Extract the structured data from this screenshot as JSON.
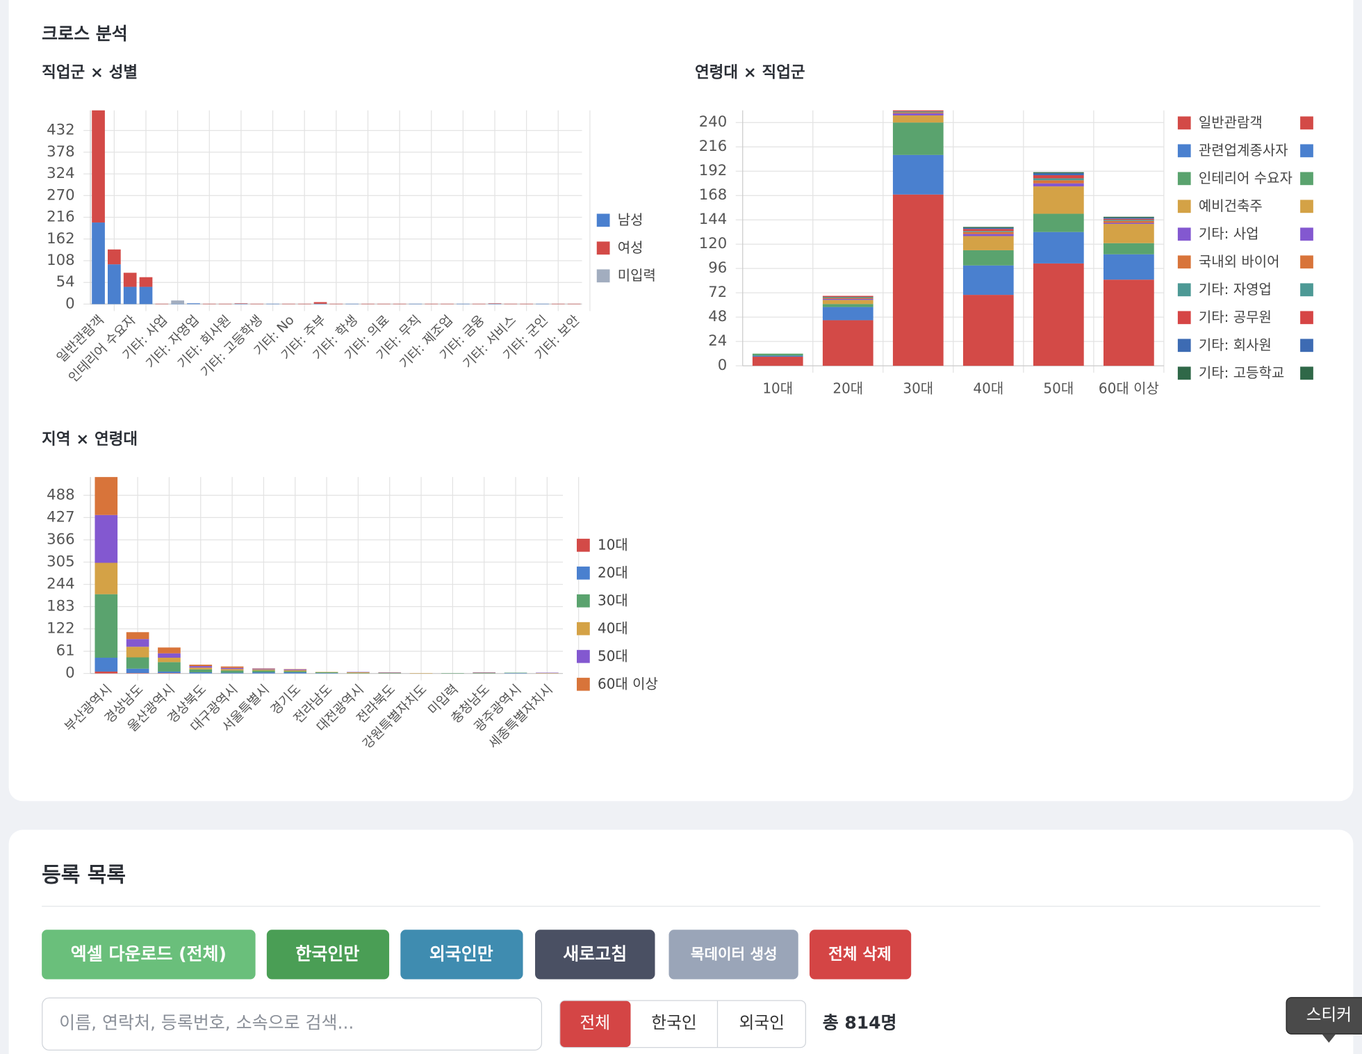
{
  "page": {
    "section_title": "크로스 분석",
    "list": {
      "title": "등록 목록",
      "buttons": [
        "엑셀 다운로드 (전체)",
        "한국인만",
        "외국인만",
        "새로고침",
        "목데이터 생성",
        "전체 삭제"
      ],
      "search_placeholder": "이름, 연락처, 등록번호, 소속으로 검색...",
      "filters": [
        "전체",
        "한국인",
        "외국인"
      ],
      "total": "총 814명",
      "tooltip": "스티커"
    }
  },
  "chart_data": [
    {
      "type": "bar",
      "stacked": true,
      "title": "직업군 × 성별",
      "legend": "right",
      "grid": true,
      "categories": [
        "일반관람객",
        null,
        "인테리어 수요자",
        null,
        "기타: 사업",
        null,
        "기타: 자영업",
        null,
        "기타: 회사원",
        null,
        "기타: 고등학생",
        null,
        "기타: No",
        null,
        "기타: 주부",
        null,
        "기타: 학생",
        null,
        "기타: 의료",
        null,
        "기타: 무직",
        null,
        "기타: 제조업",
        null,
        "기타: 금융",
        null,
        "기타: 서비스",
        null,
        "기타: 군인",
        null,
        "기타: 보안"
      ],
      "series": [
        {
          "name": "남성",
          "color": "#4a80cf",
          "values": [
            203,
            99,
            43,
            43,
            0,
            1,
            2,
            0,
            0,
            1,
            0,
            1,
            0,
            0,
            1,
            0,
            1,
            0,
            0,
            0,
            1,
            0,
            0,
            1,
            0,
            1,
            0,
            0,
            1,
            0,
            0
          ]
        },
        {
          "name": "여성",
          "color": "#d34a47",
          "values": [
            279,
            37,
            35,
            24,
            1,
            0,
            0,
            1,
            1,
            1,
            1,
            0,
            1,
            1,
            4,
            1,
            0,
            1,
            1,
            1,
            0,
            1,
            1,
            0,
            1,
            1,
            1,
            1,
            0,
            1,
            1
          ]
        },
        {
          "name": "미입력",
          "color": "#a2adbf",
          "values": [
            0,
            0,
            0,
            0,
            0,
            8,
            0,
            0,
            0,
            0,
            0,
            0,
            0,
            0,
            0,
            0,
            0,
            0,
            0,
            0,
            0,
            0,
            0,
            0,
            0,
            0,
            0,
            0,
            0,
            0,
            0
          ]
        }
      ],
      "ylim": [
        0,
        482
      ],
      "yticks": [
        0,
        54,
        108,
        162,
        216,
        270,
        324,
        378,
        432
      ]
    },
    {
      "type": "bar",
      "stacked": true,
      "title": "연령대 × 직업군",
      "legend": "right",
      "grid": true,
      "categories": [
        "10대",
        "20대",
        "30대",
        "40대",
        "50대",
        "60대 이상"
      ],
      "series": [
        {
          "name": "일반관람객",
          "color": "#d34a47",
          "values": [
            9,
            45,
            169,
            70,
            101,
            85
          ]
        },
        {
          "name": "관련업계종사자",
          "color": "#4a80cf",
          "values": [
            1,
            13,
            39,
            29,
            31,
            25
          ]
        },
        {
          "name": "인테리어 수요자",
          "color": "#5aa36e",
          "values": [
            2,
            3,
            32,
            15,
            18,
            11
          ]
        },
        {
          "name": "예비건축주",
          "color": "#d4a246",
          "values": [
            0,
            4,
            7,
            14,
            27,
            19
          ]
        },
        {
          "name": "기타: 사업",
          "color": "#8358d0",
          "values": [
            0,
            1,
            2,
            2,
            3,
            1
          ]
        },
        {
          "name": "국내외 바이어",
          "color": "#d8743a",
          "values": [
            0,
            1,
            1,
            2,
            3,
            2
          ]
        },
        {
          "name": "기타: 자영업",
          "color": "#4d9995",
          "values": [
            0,
            1,
            1,
            1,
            2,
            1
          ]
        },
        {
          "name": "기타: 공무원",
          "color": "#d64545",
          "values": [
            0,
            1,
            1,
            2,
            3,
            1
          ]
        },
        {
          "name": "기타: 회사원",
          "color": "#3d6bb3",
          "values": [
            0,
            0,
            0,
            1,
            2,
            1
          ]
        },
        {
          "name": "기타: 고등학교",
          "color": "#2f6848",
          "values": [
            0,
            0,
            0,
            1,
            1,
            1
          ]
        }
      ],
      "ylim": [
        0,
        252
      ],
      "yticks": [
        0,
        24,
        48,
        72,
        96,
        120,
        144,
        168,
        192,
        216,
        240
      ]
    },
    {
      "type": "bar",
      "stacked": true,
      "title": "지역 × 연령대",
      "legend": "right",
      "grid": true,
      "categories": [
        "부산광역시",
        "경상남도",
        "울산광역시",
        "경상북도",
        "대구광역시",
        "서울특별시",
        "경기도",
        "전라남도",
        "대전광역시",
        "전라북도",
        "강원특별자치도",
        "미입력",
        "충청남도",
        "광주광역시",
        "세종특별자치시"
      ],
      "series": [
        {
          "name": "10대",
          "color": "#d34a47",
          "values": [
            5,
            1,
            1,
            0,
            0,
            0,
            0,
            0,
            0,
            0,
            0,
            0,
            0,
            0,
            0
          ]
        },
        {
          "name": "20대",
          "color": "#4a80cf",
          "values": [
            38,
            12,
            4,
            3,
            2,
            3,
            3,
            1,
            0,
            0,
            0,
            0,
            0,
            1,
            0
          ]
        },
        {
          "name": "30대",
          "color": "#5aa36e",
          "values": [
            174,
            31,
            26,
            8,
            6,
            5,
            3,
            2,
            1,
            1,
            0,
            1,
            1,
            1,
            0
          ]
        },
        {
          "name": "40대",
          "color": "#d4a246",
          "values": [
            86,
            29,
            12,
            5,
            4,
            3,
            3,
            1,
            2,
            1,
            1,
            0,
            1,
            0,
            1
          ]
        },
        {
          "name": "50대",
          "color": "#8358d0",
          "values": [
            131,
            21,
            12,
            4,
            3,
            2,
            2,
            0,
            1,
            1,
            0,
            0,
            1,
            0,
            1
          ]
        },
        {
          "name": "60대 이상",
          "color": "#d8743a",
          "values": [
            104,
            19,
            16,
            4,
            4,
            1,
            1,
            0,
            0,
            0,
            0,
            0,
            0,
            0,
            0
          ]
        }
      ],
      "ylim": [
        0,
        538
      ],
      "yticks": [
        0,
        61,
        122,
        183,
        244,
        305,
        366,
        427,
        488
      ]
    }
  ]
}
